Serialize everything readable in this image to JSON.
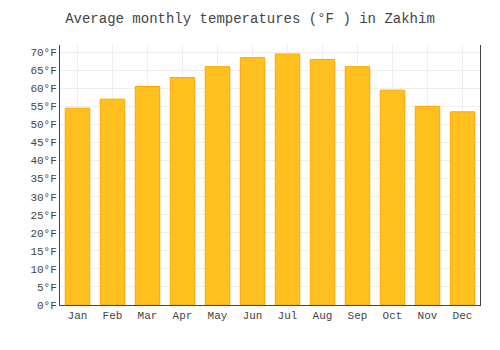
{
  "chart_data": {
    "type": "bar",
    "title": "Average monthly temperatures (°F ) in Zakhim",
    "categories": [
      "Jan",
      "Feb",
      "Mar",
      "Apr",
      "May",
      "Jun",
      "Jul",
      "Aug",
      "Sep",
      "Oct",
      "Nov",
      "Dec"
    ],
    "values": [
      54.5,
      57.0,
      60.5,
      63.0,
      66.0,
      68.5,
      69.5,
      68.0,
      66.0,
      59.5,
      55.0,
      53.5
    ],
    "color": "#FFC020",
    "ylim": [
      0,
      72
    ],
    "yticks": [
      {
        "value": 0,
        "label": "0°F"
      },
      {
        "value": 5,
        "label": "5°F"
      },
      {
        "value": 10,
        "label": "10°F"
      },
      {
        "value": 15,
        "label": "15°F"
      },
      {
        "value": 20,
        "label": "20°F"
      },
      {
        "value": 25,
        "label": "25°F"
      },
      {
        "value": 30,
        "label": "30°F"
      },
      {
        "value": 35,
        "label": "35°F"
      },
      {
        "value": 40,
        "label": "40°F"
      },
      {
        "value": 45,
        "label": "45°F"
      },
      {
        "value": 50,
        "label": "50°F"
      },
      {
        "value": 55,
        "label": "55°F"
      },
      {
        "value": 60,
        "label": "60°F"
      },
      {
        "value": 65,
        "label": "65°F"
      },
      {
        "value": 70,
        "label": "70°F"
      }
    ],
    "grid": true
  }
}
